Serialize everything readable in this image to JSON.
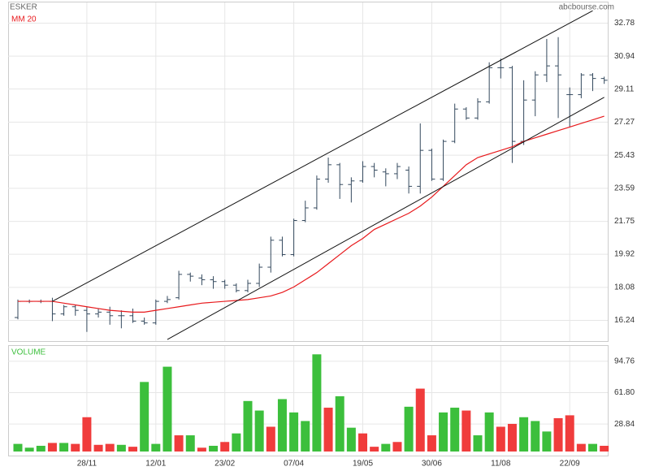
{
  "chart_data": [
    {
      "type": "ohlc",
      "title": "ESKER",
      "source": "abcbourse.com",
      "color": "#34495e",
      "open": [
        16.4,
        17.3,
        17.3,
        17.3,
        16.6,
        17.0,
        16.8,
        16.6,
        16.7,
        16.5,
        16.5,
        16.2,
        16.1,
        17.3,
        17.5,
        18.8,
        18.6,
        18.5,
        18.4,
        18.2,
        17.9,
        18.3,
        19.2,
        20.7,
        19.9,
        21.8,
        22.5,
        24.1,
        24.9,
        23.8,
        24.0,
        24.8,
        24.5,
        24.4,
        24.6,
        23.7,
        25.7,
        24.1,
        26.2,
        28.0,
        27.5,
        28.4,
        30.3,
        30.3,
        26.2,
        28.5,
        29.9,
        30.4,
        28.8,
        28.8,
        29.9,
        29.7
      ],
      "high": [
        17.4,
        17.4,
        17.4,
        17.5,
        17.1,
        17.1,
        17.0,
        16.9,
        17.0,
        16.8,
        16.9,
        16.4,
        17.4,
        17.6,
        19.0,
        18.9,
        18.8,
        18.7,
        18.5,
        18.3,
        18.5,
        19.4,
        20.9,
        20.9,
        21.9,
        22.9,
        24.3,
        25.3,
        25.0,
        24.2,
        25.1,
        25.0,
        24.7,
        25.0,
        24.8,
        27.2,
        25.8,
        26.3,
        28.3,
        28.1,
        28.6,
        30.6,
        30.8,
        30.4,
        29.6,
        30.1,
        31.9,
        32.0,
        29.2,
        30.0,
        30.0,
        29.8
      ],
      "low": [
        16.3,
        17.2,
        17.2,
        16.2,
        16.5,
        16.5,
        15.6,
        16.4,
        16.0,
        15.8,
        16.1,
        16.0,
        16.0,
        17.2,
        17.4,
        18.4,
        18.2,
        18.0,
        18.0,
        17.8,
        17.8,
        18.1,
        18.9,
        19.8,
        19.8,
        21.7,
        22.4,
        23.9,
        23.0,
        22.8,
        23.9,
        24.2,
        23.7,
        24.1,
        23.3,
        23.3,
        24.0,
        24.0,
        26.1,
        27.4,
        27.4,
        28.3,
        29.7,
        25.0,
        26.0,
        27.6,
        29.5,
        27.5,
        27.0,
        28.6,
        29.0,
        29.4
      ],
      "close": [
        17.3,
        17.3,
        17.3,
        16.6,
        17.0,
        16.8,
        16.6,
        16.7,
        16.5,
        16.5,
        16.2,
        16.1,
        17.3,
        17.4,
        18.8,
        18.7,
        18.5,
        18.4,
        18.2,
        17.9,
        18.3,
        19.2,
        20.7,
        19.9,
        21.8,
        22.5,
        24.1,
        24.9,
        23.8,
        24.0,
        24.8,
        24.6,
        24.4,
        24.8,
        23.7,
        25.7,
        24.1,
        26.2,
        28.0,
        27.5,
        28.4,
        30.3,
        30.3,
        26.2,
        28.5,
        29.9,
        30.4,
        29.9,
        28.8,
        29.9,
        29.7,
        29.6
      ],
      "series": [
        {
          "name": "MM 20",
          "color": "#e8191c",
          "values": [
            17.3,
            17.3,
            17.3,
            17.3,
            17.2,
            17.1,
            17.0,
            16.9,
            16.8,
            16.75,
            16.7,
            16.7,
            16.8,
            16.9,
            17.0,
            17.1,
            17.2,
            17.25,
            17.3,
            17.35,
            17.4,
            17.5,
            17.6,
            17.8,
            18.1,
            18.5,
            18.9,
            19.4,
            19.9,
            20.4,
            20.8,
            21.3,
            21.6,
            21.9,
            22.2,
            22.6,
            23.1,
            23.7,
            24.3,
            24.9,
            25.3,
            25.5,
            25.7,
            25.9,
            26.2,
            26.4,
            26.6,
            26.8,
            27.0,
            27.2,
            27.4,
            27.6
          ]
        }
      ],
      "trendlines": [
        {
          "x": [
            3,
            50
          ],
          "y": [
            17.3,
            33.47
          ]
        },
        {
          "x": [
            13,
            51
          ],
          "y": [
            15.18,
            28.65
          ]
        }
      ],
      "ylim": [
        15.09,
        33.93
      ],
      "yticks": [
        16.24,
        18.08,
        19.92,
        21.75,
        23.59,
        25.43,
        27.27,
        29.11,
        30.94,
        32.78
      ],
      "grid": true
    },
    {
      "type": "bar",
      "title": "VOLUME",
      "categories": [
        null,
        null,
        null,
        null,
        null,
        null,
        "28/11",
        null,
        null,
        null,
        null,
        null,
        "12/01",
        null,
        null,
        null,
        null,
        null,
        "23/02",
        null,
        null,
        null,
        null,
        null,
        "07/04",
        null,
        null,
        null,
        null,
        null,
        "19/05",
        null,
        null,
        null,
        null,
        null,
        "30/06",
        null,
        null,
        null,
        null,
        null,
        "11/08",
        null,
        null,
        null,
        null,
        null,
        "22/09",
        null,
        null,
        null
      ],
      "values": [
        8,
        4,
        6,
        9,
        9,
        8,
        36,
        7,
        8,
        7,
        5,
        73,
        8,
        89,
        17,
        17,
        4,
        6,
        10,
        19,
        53,
        43,
        26,
        55,
        41,
        32,
        102,
        46,
        58,
        25,
        19,
        5,
        8,
        10,
        47,
        66,
        17,
        41,
        46,
        43,
        17,
        41,
        26,
        29,
        36,
        32,
        21,
        35,
        38,
        8,
        8,
        6
      ],
      "colors": [
        "#3cbf3c",
        "#3cbf3c",
        "#3cbf3c",
        "#f03c3c",
        "#3cbf3c",
        "#f03c3c",
        "#f03c3c",
        "#f03c3c",
        "#f03c3c",
        "#3cbf3c",
        "#f03c3c",
        "#3cbf3c",
        "#3cbf3c",
        "#3cbf3c",
        "#f03c3c",
        "#3cbf3c",
        "#f03c3c",
        "#3cbf3c",
        "#f03c3c",
        "#3cbf3c",
        "#3cbf3c",
        "#3cbf3c",
        "#f03c3c",
        "#3cbf3c",
        "#3cbf3c",
        "#3cbf3c",
        "#3cbf3c",
        "#f03c3c",
        "#3cbf3c",
        "#3cbf3c",
        "#f03c3c",
        "#f03c3c",
        "#3cbf3c",
        "#f03c3c",
        "#3cbf3c",
        "#f03c3c",
        "#f03c3c",
        "#3cbf3c",
        "#3cbf3c",
        "#f03c3c",
        "#3cbf3c",
        "#3cbf3c",
        "#f03c3c",
        "#f03c3c",
        "#3cbf3c",
        "#3cbf3c",
        "#3cbf3c",
        "#f03c3c",
        "#f03c3c",
        "#f03c3c",
        "#3cbf3c",
        "#f03c3c"
      ],
      "ylim": [
        0,
        110.8
      ],
      "yticks": [
        28.84,
        {
          "value": 61.8,
          "label": "61.80"
        },
        94.76
      ],
      "grid": true
    }
  ]
}
